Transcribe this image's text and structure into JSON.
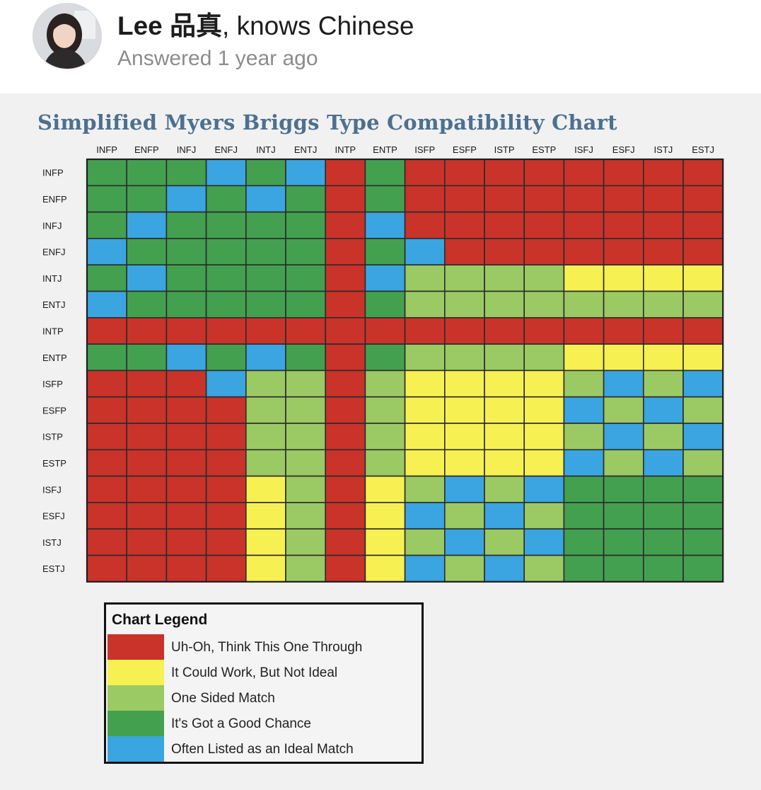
{
  "author": {
    "name": "Lee 品真",
    "credential": ", knows Chinese",
    "answered": "Answered 1 year ago"
  },
  "icons": {
    "avatar": "user-avatar-photo"
  },
  "colors": {
    "R": "#c9332a",
    "Y": "#f7f052",
    "L": "#9bc963",
    "G": "#43a04f",
    "B": "#3aa5e0"
  },
  "chart_data": {
    "type": "heatmap",
    "title": "Simplified Myers Briggs Type Compatibility Chart",
    "columns": [
      "INFP",
      "ENFP",
      "INFJ",
      "ENFJ",
      "INTJ",
      "ENTJ",
      "INTP",
      "ENTP",
      "ISFP",
      "ESFP",
      "ISTP",
      "ESTP",
      "ISFJ",
      "ESFJ",
      "ISTJ",
      "ESTJ"
    ],
    "rows": [
      "INFP",
      "ENFP",
      "INFJ",
      "ENFJ",
      "INTJ",
      "ENTJ",
      "INTP",
      "ENTP",
      "ISFP",
      "ESFP",
      "ISTP",
      "ESTP",
      "ISFJ",
      "ESFJ",
      "ISTJ",
      "ESTJ"
    ],
    "cells": [
      [
        "G",
        "G",
        "G",
        "B",
        "G",
        "B",
        "R",
        "G",
        "R",
        "R",
        "R",
        "R",
        "R",
        "R",
        "R",
        "R"
      ],
      [
        "G",
        "G",
        "B",
        "G",
        "B",
        "G",
        "R",
        "G",
        "R",
        "R",
        "R",
        "R",
        "R",
        "R",
        "R",
        "R"
      ],
      [
        "G",
        "B",
        "G",
        "G",
        "G",
        "G",
        "R",
        "B",
        "R",
        "R",
        "R",
        "R",
        "R",
        "R",
        "R",
        "R"
      ],
      [
        "B",
        "G",
        "G",
        "G",
        "G",
        "G",
        "R",
        "G",
        "B",
        "R",
        "R",
        "R",
        "R",
        "R",
        "R",
        "R"
      ],
      [
        "G",
        "B",
        "G",
        "G",
        "G",
        "G",
        "R",
        "B",
        "L",
        "L",
        "L",
        "L",
        "Y",
        "Y",
        "Y",
        "Y"
      ],
      [
        "B",
        "G",
        "G",
        "G",
        "G",
        "G",
        "R",
        "G",
        "L",
        "L",
        "L",
        "L",
        "L",
        "L",
        "L",
        "L"
      ],
      [
        "R",
        "R",
        "R",
        "R",
        "R",
        "R",
        "R",
        "R",
        "R",
        "R",
        "R",
        "R",
        "R",
        "R",
        "R",
        "R"
      ],
      [
        "G",
        "G",
        "B",
        "G",
        "B",
        "G",
        "R",
        "G",
        "L",
        "L",
        "L",
        "L",
        "Y",
        "Y",
        "Y",
        "Y"
      ],
      [
        "R",
        "R",
        "R",
        "B",
        "L",
        "L",
        "R",
        "L",
        "Y",
        "Y",
        "Y",
        "Y",
        "L",
        "B",
        "L",
        "B"
      ],
      [
        "R",
        "R",
        "R",
        "R",
        "L",
        "L",
        "R",
        "L",
        "Y",
        "Y",
        "Y",
        "Y",
        "B",
        "L",
        "B",
        "L"
      ],
      [
        "R",
        "R",
        "R",
        "R",
        "L",
        "L",
        "R",
        "L",
        "Y",
        "Y",
        "Y",
        "Y",
        "L",
        "B",
        "L",
        "B"
      ],
      [
        "R",
        "R",
        "R",
        "R",
        "L",
        "L",
        "R",
        "L",
        "Y",
        "Y",
        "Y",
        "Y",
        "B",
        "L",
        "B",
        "L"
      ],
      [
        "R",
        "R",
        "R",
        "R",
        "Y",
        "L",
        "R",
        "Y",
        "L",
        "B",
        "L",
        "B",
        "G",
        "G",
        "G",
        "G"
      ],
      [
        "R",
        "R",
        "R",
        "R",
        "Y",
        "L",
        "R",
        "Y",
        "B",
        "L",
        "B",
        "L",
        "G",
        "G",
        "G",
        "G"
      ],
      [
        "R",
        "R",
        "R",
        "R",
        "Y",
        "L",
        "R",
        "Y",
        "L",
        "B",
        "L",
        "B",
        "G",
        "G",
        "G",
        "G"
      ],
      [
        "R",
        "R",
        "R",
        "R",
        "Y",
        "L",
        "R",
        "Y",
        "B",
        "L",
        "B",
        "L",
        "G",
        "G",
        "G",
        "G"
      ]
    ],
    "legend": {
      "title": "Chart Legend",
      "items": [
        {
          "key": "R",
          "label": "Uh-Oh, Think This One Through"
        },
        {
          "key": "Y",
          "label": "It Could Work, But Not Ideal"
        },
        {
          "key": "L",
          "label": "One Sided Match"
        },
        {
          "key": "G",
          "label": "It's Got a Good Chance"
        },
        {
          "key": "B",
          "label": "Often Listed as an Ideal Match"
        }
      ]
    }
  }
}
